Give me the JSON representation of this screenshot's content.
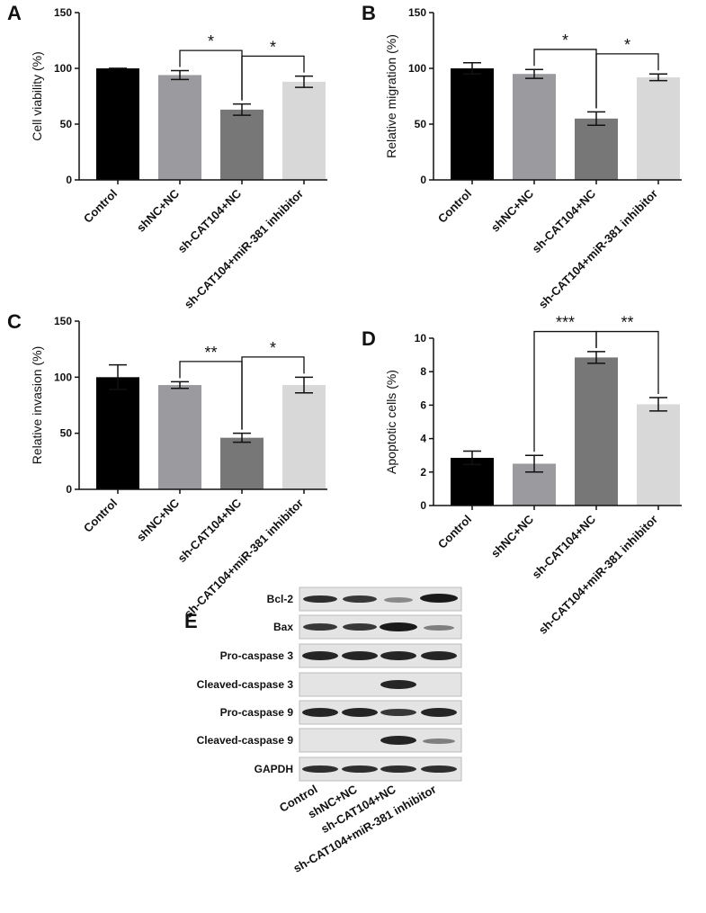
{
  "chart_data": [
    {
      "type": "bar",
      "label": "A",
      "ylabel": "Cell viability (%)",
      "categories": [
        "Control",
        "shNC+NC",
        "sh-CAT104+NC",
        "sh-CAT104+miR-381 inhibitor"
      ],
      "values": [
        100,
        94,
        63,
        88
      ],
      "errors": [
        0,
        4,
        5,
        5
      ],
      "colors": [
        "#000000",
        "#9b9b9f",
        "#777777",
        "#d8d8d8"
      ],
      "ylim": [
        0,
        150
      ],
      "yticks": [
        0,
        50,
        100,
        150
      ],
      "annotations": [
        {
          "text": "*",
          "between": [
            "shNC+NC",
            "sh-CAT104+NC"
          ]
        },
        {
          "text": "*",
          "between": [
            "sh-CAT104+NC",
            "sh-CAT104+miR-381 inhibitor"
          ]
        }
      ]
    },
    {
      "type": "bar",
      "label": "B",
      "ylabel": "Relative migration (%)",
      "categories": [
        "Control",
        "shNC+NC",
        "sh-CAT104+NC",
        "sh-CAT104+miR-381 inhibitor"
      ],
      "values": [
        100,
        95,
        55,
        92
      ],
      "errors": [
        5,
        4,
        6,
        3
      ],
      "colors": [
        "#000000",
        "#9b9b9f",
        "#777777",
        "#d8d8d8"
      ],
      "ylim": [
        0,
        150
      ],
      "yticks": [
        0,
        50,
        100,
        150
      ],
      "annotations": [
        {
          "text": "*",
          "between": [
            "shNC+NC",
            "sh-CAT104+NC"
          ]
        },
        {
          "text": "*",
          "between": [
            "sh-CAT104+NC",
            "sh-CAT104+miR-381 inhibitor"
          ]
        }
      ]
    },
    {
      "type": "bar",
      "label": "C",
      "ylabel": "Relative invasion (%)",
      "categories": [
        "Control",
        "shNC+NC",
        "sh-CAT104+NC",
        "sh-CAT104+miR-381 inhibitor"
      ],
      "values": [
        100,
        93,
        46,
        93
      ],
      "errors": [
        11,
        3,
        4,
        7
      ],
      "colors": [
        "#000000",
        "#9b9b9f",
        "#777777",
        "#d8d8d8"
      ],
      "ylim": [
        0,
        150
      ],
      "yticks": [
        0,
        50,
        100,
        150
      ],
      "annotations": [
        {
          "text": "**",
          "between": [
            "shNC+NC",
            "sh-CAT104+NC"
          ]
        },
        {
          "text": "*",
          "between": [
            "sh-CAT104+NC",
            "sh-CAT104+miR-381 inhibitor"
          ]
        }
      ]
    },
    {
      "type": "bar",
      "label": "D",
      "ylabel": "Apoptotic cells (%)",
      "categories": [
        "Control",
        "shNC+NC",
        "sh-CAT104+NC",
        "sh-CAT104+miR-381 inhibitor"
      ],
      "values": [
        2.85,
        2.5,
        8.85,
        6.05
      ],
      "errors": [
        0.4,
        0.5,
        0.35,
        0.4
      ],
      "colors": [
        "#000000",
        "#9b9b9f",
        "#777777",
        "#d8d8d8"
      ],
      "ylim": [
        0,
        10
      ],
      "yticks": [
        0,
        2,
        4,
        6,
        8,
        10
      ],
      "annotations": [
        {
          "text": "***",
          "between": [
            "shNC+NC",
            "sh-CAT104+NC"
          ]
        },
        {
          "text": "**",
          "between": [
            "sh-CAT104+NC",
            "sh-CAT104+miR-381 inhibitor"
          ]
        }
      ]
    }
  ],
  "blot": {
    "label": "E",
    "rows": [
      "Bcl-2",
      "Bax",
      "Pro-caspase 3",
      "Cleaved-caspase 3",
      "Pro-caspase 9",
      "Cleaved-caspase 9",
      "GAPDH"
    ],
    "lanes": [
      "Control",
      "shNC+NC",
      "sh-CAT104+NC",
      "sh-CAT104+miR-381 inhibitor"
    ]
  }
}
